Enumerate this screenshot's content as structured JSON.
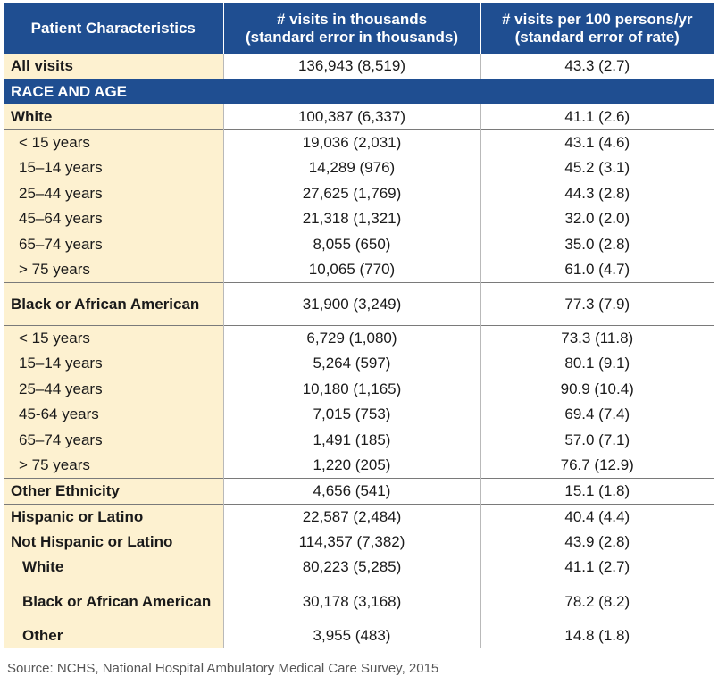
{
  "header": {
    "col1": "Patient Characteristics",
    "col2_line1": "# visits in thousands",
    "col2_line2": "(standard error in thousands)",
    "col3_line1": "# visits per 100 persons/yr",
    "col3_line2": "(standard error of rate)"
  },
  "section_label": "RACE AND AGE",
  "rows": {
    "all_visits": {
      "label": "All visits",
      "visits": "136,943 (8,519)",
      "rate": "43.3 (2.7)"
    },
    "white": {
      "label": "White",
      "visits": "100,387 (6,337)",
      "rate": "41.1 (2.6)"
    },
    "white_lt15": {
      "label": "< 15 years",
      "visits": "19,036 (2,031)",
      "rate": "43.1 (4.6)"
    },
    "white_15_14": {
      "label": "15–14 years",
      "visits": "14,289 (976)",
      "rate": "45.2 (3.1)"
    },
    "white_25_44": {
      "label": "25–44 years",
      "visits": "27,625 (1,769)",
      "rate": "44.3 (2.8)"
    },
    "white_45_64": {
      "label": "45–64 years",
      "visits": "21,318 (1,321)",
      "rate": "32.0 (2.0)"
    },
    "white_65_74": {
      "label": "65–74 years",
      "visits": "8,055 (650)",
      "rate": "35.0 (2.8)"
    },
    "white_gt75": {
      "label": "> 75 years",
      "visits": "10,065 (770)",
      "rate": "61.0 (4.7)"
    },
    "black": {
      "label": "Black or African American",
      "visits": "31,900 (3,249)",
      "rate": "77.3 (7.9)"
    },
    "black_lt15": {
      "label": "< 15 years",
      "visits": "6,729 (1,080)",
      "rate": "73.3 (11.8)"
    },
    "black_15_14": {
      "label": "15–14 years",
      "visits": "5,264 (597)",
      "rate": "80.1 (9.1)"
    },
    "black_25_44": {
      "label": "25–44 years",
      "visits": "10,180 (1,165)",
      "rate": "90.9 (10.4)"
    },
    "black_45_64": {
      "label": "45-64 years",
      "visits": "7,015 (753)",
      "rate": "69.4 (7.4)"
    },
    "black_65_74": {
      "label": "65–74 years",
      "visits": "1,491 (185)",
      "rate": "57.0 (7.1)"
    },
    "black_gt75": {
      "label": "> 75 years",
      "visits": "1,220 (205)",
      "rate": "76.7 (12.9)"
    },
    "other_ethnicity": {
      "label": "Other Ethnicity",
      "visits": "4,656 (541)",
      "rate": "15.1 (1.8)"
    },
    "hispanic": {
      "label": "Hispanic or Latino",
      "visits": "22,587 (2,484)",
      "rate": "40.4 (4.4)"
    },
    "not_hispanic": {
      "label": "Not Hispanic or Latino",
      "visits": "114,357 (7,382)",
      "rate": "43.9 (2.8)"
    },
    "nh_white": {
      "label": "White",
      "visits": "80,223 (5,285)",
      "rate": "41.1 (2.7)"
    },
    "nh_black": {
      "label": "Black or African American",
      "visits": "30,178 (3,168)",
      "rate": "78.2 (8.2)"
    },
    "nh_other": {
      "label": "Other",
      "visits": "3,955 (483)",
      "rate": "14.8 (1.8)"
    }
  },
  "source": "Source: NCHS, National Hospital Ambulatory Medical Care Survey, 2015",
  "colors": {
    "header_bg": "#1f4e91",
    "label_bg": "#fdf1d0"
  }
}
